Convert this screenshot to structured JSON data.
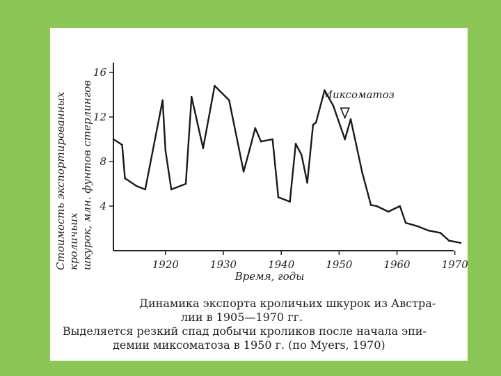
{
  "chart_data": {
    "type": "line",
    "title": "",
    "xlabel": "Время, годы",
    "ylabel_line1": "Стоимость экспортированных кроличьих",
    "ylabel_line2": "шкурок, млн. фунтов стерлингов",
    "xlim": [
      1911,
      1972
    ],
    "ylim": [
      0,
      16.5
    ],
    "x_ticks": [
      1920,
      1930,
      1940,
      1950,
      1960,
      1970
    ],
    "y_ticks": [
      4,
      8,
      12,
      16
    ],
    "annotation": {
      "label": "Миксоматоз",
      "x": 1951,
      "y": 11.8
    },
    "series": [
      {
        "x": [
          1911,
          1912.5,
          1913,
          1915,
          1916.5,
          1919.5,
          1920,
          1921,
          1923.5,
          1924.5,
          1926.5,
          1928.5,
          1931,
          1933.5,
          1934.5,
          1935.5,
          1936.5,
          1938.5,
          1939.5,
          1941.5,
          1942.5,
          1943.5,
          1944.5,
          1945.5,
          1946,
          1947.5,
          1949,
          1951,
          1952,
          1954,
          1955.5,
          1956.5,
          1958.5,
          1960.5,
          1961.5,
          1963.5,
          1965.5,
          1967.5,
          1969,
          1971
        ],
        "y": [
          10,
          9.5,
          6.5,
          5.8,
          5.5,
          13.5,
          9,
          5.5,
          6,
          13.8,
          9.2,
          14.8,
          13.5,
          7.1,
          9,
          11,
          9.8,
          10,
          4.8,
          4.4,
          9.6,
          8.6,
          6.1,
          11.3,
          11.5,
          14.4,
          13,
          10,
          11.8,
          7,
          4.1,
          4,
          3.5,
          4,
          2.5,
          2.2,
          1.8,
          1.6,
          0.9,
          0.7
        ]
      }
    ]
  },
  "caption": {
    "line1": "Динамика экспорта кроличьих шкурок из Австра-",
    "line2": "лии в 1905—1970 гг.",
    "line3": "Выделяется резкий спад добычи кроликов после начала эпи-",
    "line4": "демии миксоматоза в 1950 г. (по Myers, 1970)"
  }
}
